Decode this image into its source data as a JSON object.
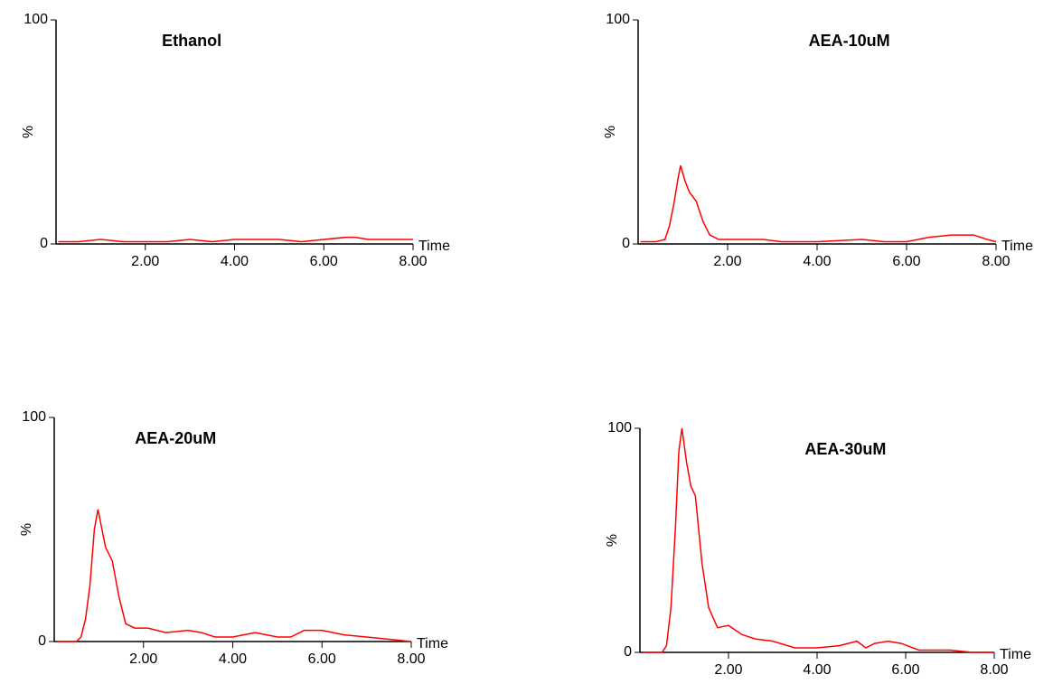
{
  "chart_data": [
    {
      "type": "line",
      "title": "Ethanol",
      "xlabel": "Time",
      "ylabel": "%",
      "color": "#ff0000",
      "x": [
        0.05,
        0.5,
        1,
        1.5,
        2,
        2.5,
        3,
        3.5,
        4,
        4.5,
        5,
        5.5,
        6,
        6.5,
        6.7,
        7,
        7.5,
        8
      ],
      "values": [
        1,
        1,
        2,
        1,
        1,
        1,
        2,
        1,
        2,
        2,
        2,
        1,
        2,
        3,
        3,
        2,
        2,
        2
      ],
      "xlim": [
        0,
        8
      ],
      "ylim": [
        0,
        100
      ],
      "xticks": [
        {
          "value": 2,
          "label": "2.00"
        },
        {
          "value": 4,
          "label": "4.00"
        },
        {
          "value": 6,
          "label": "6.00"
        },
        {
          "value": 8,
          "label": "8.00"
        }
      ],
      "yticks": [
        0,
        100
      ]
    },
    {
      "type": "line",
      "title": "AEA-10uM",
      "xlabel": "Time",
      "ylabel": "%",
      "color": "#ff0000",
      "x": [
        0.05,
        0.4,
        0.6,
        0.7,
        0.8,
        0.9,
        0.95,
        1.05,
        1.15,
        1.3,
        1.45,
        1.6,
        1.8,
        2.2,
        2.8,
        3.2,
        4,
        5,
        5.5,
        6,
        6.5,
        7,
        7.5,
        7.8,
        8
      ],
      "values": [
        1,
        1,
        2,
        8,
        18,
        30,
        35,
        28,
        23,
        19,
        10,
        4,
        2,
        2,
        2,
        1,
        1,
        2,
        1,
        1,
        3,
        4,
        4,
        2,
        1
      ],
      "xlim": [
        0,
        8
      ],
      "ylim": [
        0,
        100
      ],
      "xticks": [
        {
          "value": 2,
          "label": "2.00"
        },
        {
          "value": 4,
          "label": "4.00"
        },
        {
          "value": 6,
          "label": "6.00"
        },
        {
          "value": 8,
          "label": "8.00"
        }
      ],
      "yticks": [
        0,
        100
      ]
    },
    {
      "type": "line",
      "title": "AEA-20uM",
      "xlabel": "Time",
      "ylabel": "%",
      "color": "#ff0000",
      "x": [
        0.05,
        0.5,
        0.6,
        0.7,
        0.8,
        0.9,
        0.98,
        1.05,
        1.15,
        1.3,
        1.45,
        1.6,
        1.8,
        2.1,
        2.5,
        3,
        3.3,
        3.6,
        4,
        4.5,
        5,
        5.3,
        5.6,
        6,
        6.5,
        7,
        7.5,
        8
      ],
      "values": [
        0,
        0,
        2,
        10,
        25,
        50,
        59,
        52,
        42,
        36,
        20,
        8,
        6,
        6,
        4,
        5,
        4,
        2,
        2,
        4,
        2,
        2,
        5,
        5,
        3,
        2,
        1,
        0
      ],
      "xlim": [
        0,
        8
      ],
      "ylim": [
        0,
        100
      ],
      "xticks": [
        {
          "value": 2,
          "label": "2.00"
        },
        {
          "value": 4,
          "label": "4.00"
        },
        {
          "value": 6,
          "label": "6.00"
        },
        {
          "value": 8,
          "label": "8.00"
        }
      ],
      "yticks": [
        0,
        100
      ]
    },
    {
      "type": "line",
      "title": "AEA-30uM",
      "xlabel": "Time",
      "ylabel": "%",
      "color": "#ff0000",
      "x": [
        0.05,
        0.5,
        0.6,
        0.7,
        0.8,
        0.88,
        0.95,
        1.05,
        1.15,
        1.25,
        1.4,
        1.55,
        1.75,
        2,
        2.3,
        2.6,
        3,
        3.5,
        4,
        4.5,
        4.9,
        5.1,
        5.3,
        5.6,
        5.9,
        6.3,
        7,
        7.5,
        8
      ],
      "values": [
        0,
        0,
        3,
        20,
        55,
        90,
        100,
        85,
        74,
        70,
        40,
        20,
        11,
        12,
        8,
        6,
        5,
        2,
        2,
        3,
        5,
        2,
        4,
        5,
        4,
        1,
        1,
        0,
        0
      ],
      "xlim": [
        0,
        8
      ],
      "ylim": [
        0,
        100
      ],
      "xticks": [
        {
          "value": 2,
          "label": "2.00"
        },
        {
          "value": 4,
          "label": "4.00"
        },
        {
          "value": 6,
          "label": "6.00"
        },
        {
          "value": 8,
          "label": "8.00"
        }
      ],
      "yticks": [
        0,
        100
      ]
    }
  ]
}
